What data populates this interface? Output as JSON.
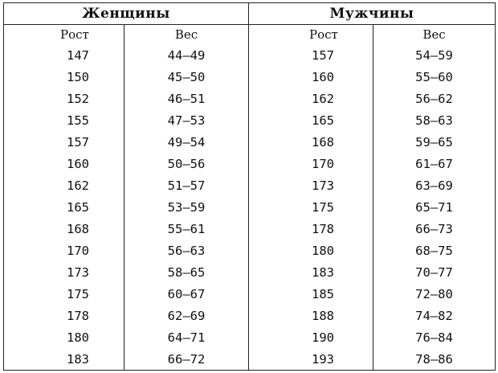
{
  "groups": {
    "women": "Женщины",
    "men": "Мужчины"
  },
  "columns": {
    "women_height": "Рост",
    "women_weight": "Вес",
    "men_height": "Рост",
    "men_weight": "Вес"
  },
  "rows": [
    {
      "women_height": "147",
      "women_weight": "44–49",
      "men_height": "157",
      "men_weight": "54–59"
    },
    {
      "women_height": "150",
      "women_weight": "45–50",
      "men_height": "160",
      "men_weight": "55–60"
    },
    {
      "women_height": "152",
      "women_weight": "46–51",
      "men_height": "162",
      "men_weight": "56–62"
    },
    {
      "women_height": "155",
      "women_weight": "47–53",
      "men_height": "165",
      "men_weight": "58–63"
    },
    {
      "women_height": "157",
      "women_weight": "49–54",
      "men_height": "168",
      "men_weight": "59–65"
    },
    {
      "women_height": "160",
      "women_weight": "50–56",
      "men_height": "170",
      "men_weight": "61–67"
    },
    {
      "women_height": "162",
      "women_weight": "51–57",
      "men_height": "173",
      "men_weight": "63–69"
    },
    {
      "women_height": "165",
      "women_weight": "53–59",
      "men_height": "175",
      "men_weight": "65–71"
    },
    {
      "women_height": "168",
      "women_weight": "55–61",
      "men_height": "178",
      "men_weight": "66–73"
    },
    {
      "women_height": "170",
      "women_weight": "56–63",
      "men_height": "180",
      "men_weight": "68–75"
    },
    {
      "women_height": "173",
      "women_weight": "58–65",
      "men_height": "183",
      "men_weight": "70–77"
    },
    {
      "women_height": "175",
      "women_weight": "60–67",
      "men_height": "185",
      "men_weight": "72–80"
    },
    {
      "women_height": "178",
      "women_weight": "62–69",
      "men_height": "188",
      "men_weight": "74–82"
    },
    {
      "women_height": "180",
      "women_weight": "64–71",
      "men_height": "190",
      "men_weight": "76–84"
    },
    {
      "women_height": "183",
      "women_weight": "66–72",
      "men_height": "193",
      "men_weight": "78–86"
    }
  ]
}
